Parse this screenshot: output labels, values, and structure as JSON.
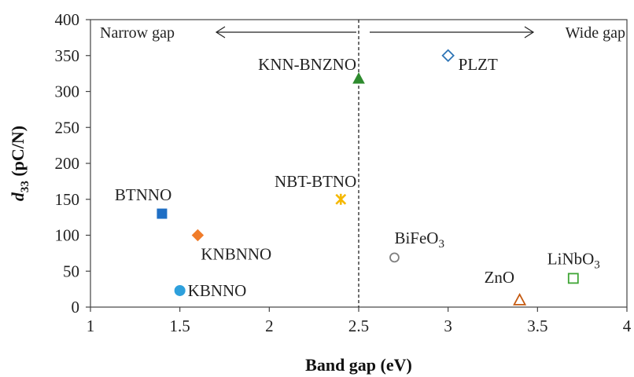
{
  "chart_data": {
    "type": "scatter",
    "title": "",
    "xlabel": "Band gap (eV)",
    "ylabel_main": "d",
    "ylabel_sub": "33",
    "ylabel_rest": " (pC/N)",
    "xlim": [
      1,
      4
    ],
    "ylim": [
      0,
      400
    ],
    "xticks": [
      1,
      1.5,
      2,
      2.5,
      3,
      3.5,
      4
    ],
    "xtick_labels": [
      "1",
      "1.5",
      "2",
      "2.5",
      "3",
      "3.5",
      "4"
    ],
    "yticks": [
      0,
      50,
      100,
      150,
      200,
      250,
      300,
      350,
      400
    ],
    "ytick_labels": [
      "0",
      "50",
      "100",
      "150",
      "200",
      "250",
      "300",
      "350",
      "400"
    ],
    "grid": false,
    "divider_x": 2.5,
    "regions": {
      "left": "Narrow gap",
      "right": "Wide gap"
    },
    "points": [
      {
        "label": "BTNNO",
        "x": 1.4,
        "y": 130,
        "marker": "square",
        "color": "#1f6fc5",
        "filled": true
      },
      {
        "label": "KNBNNO",
        "x": 1.6,
        "y": 100,
        "marker": "diamond",
        "color": "#f07c2a",
        "filled": true
      },
      {
        "label": "KBNNO",
        "x": 1.5,
        "y": 23,
        "marker": "circle",
        "color": "#2ea0dc",
        "filled": true
      },
      {
        "label": "NBT-BTNO",
        "x": 2.4,
        "y": 150,
        "marker": "asterisk",
        "color": "#f5b800",
        "filled": true
      },
      {
        "label": "KNN-BNZNO",
        "x": 2.5,
        "y": 318,
        "marker": "triangle",
        "color": "#2e8b2e",
        "filled": true
      },
      {
        "label": "PLZT",
        "x": 3.0,
        "y": 350,
        "marker": "diamond-open",
        "color": "#2e75b6",
        "filled": false
      },
      {
        "label": "BiFeO",
        "label_sub": "3",
        "x": 2.7,
        "y": 69,
        "marker": "circle-open",
        "color": "#7f7f7f",
        "filled": false
      },
      {
        "label": "ZnO",
        "x": 3.4,
        "y": 10,
        "marker": "triangle-open",
        "color": "#c55a11",
        "filled": false
      },
      {
        "label": "LiNbO",
        "label_sub": "3",
        "x": 3.7,
        "y": 40,
        "marker": "square-open",
        "color": "#3fa535",
        "filled": false
      }
    ]
  }
}
